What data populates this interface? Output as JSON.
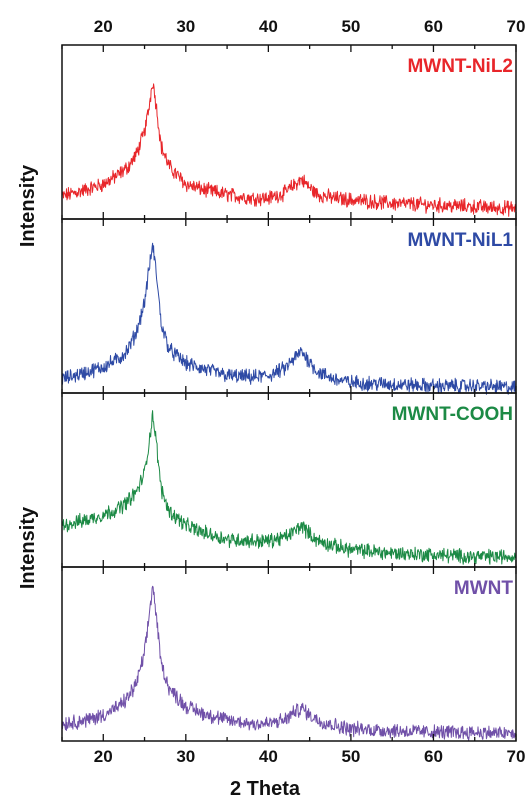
{
  "chart_data": {
    "type": "line",
    "xlabel": "2 Theta",
    "ylabel": "Intensity",
    "xlim": [
      15,
      70
    ],
    "x_ticks": [
      "20",
      "30",
      "40",
      "50",
      "60",
      "70"
    ],
    "x_tick_values": [
      20,
      30,
      40,
      50,
      60,
      70
    ],
    "minor_x_step": 5,
    "axes_top_ticks": true,
    "grid": false,
    "legend": "none (labels at top-right of each panel)",
    "panels": [
      {
        "name": "MWNT-NiL2",
        "color": "#e8262a",
        "ylim": [
          0,
          1
        ],
        "series": {
          "x": [
            15,
            18,
            20,
            22,
            23,
            24,
            25,
            25.5,
            26,
            26.5,
            27,
            28,
            30,
            32,
            35,
            38,
            40,
            42,
            43,
            44,
            45,
            46,
            48,
            50,
            55,
            60,
            65,
            70
          ],
          "y": [
            0.13,
            0.17,
            0.2,
            0.26,
            0.3,
            0.37,
            0.5,
            0.63,
            0.8,
            0.62,
            0.42,
            0.3,
            0.2,
            0.17,
            0.14,
            0.12,
            0.12,
            0.15,
            0.19,
            0.23,
            0.18,
            0.14,
            0.12,
            0.11,
            0.09,
            0.08,
            0.07,
            0.06
          ]
        }
      },
      {
        "name": "MWNT-NiL1",
        "color": "#2e4aa5",
        "ylim": [
          0,
          1
        ],
        "series": {
          "x": [
            15,
            18,
            20,
            22,
            23,
            24,
            25,
            25.5,
            26,
            26.5,
            27,
            28,
            30,
            32,
            35,
            38,
            40,
            42,
            43,
            44,
            45,
            46,
            48,
            50,
            55,
            60,
            65,
            70
          ],
          "y": [
            0.08,
            0.12,
            0.15,
            0.2,
            0.25,
            0.35,
            0.52,
            0.7,
            0.85,
            0.66,
            0.4,
            0.25,
            0.17,
            0.14,
            0.1,
            0.09,
            0.1,
            0.14,
            0.19,
            0.24,
            0.18,
            0.12,
            0.08,
            0.06,
            0.05,
            0.04,
            0.04,
            0.03
          ]
        }
      },
      {
        "name": "MWNT-COOH",
        "color": "#1c8a45",
        "ylim": [
          0,
          1
        ],
        "series": {
          "x": [
            15,
            18,
            20,
            22,
            23,
            24,
            25,
            25.5,
            26,
            26.5,
            27,
            28,
            30,
            32,
            35,
            38,
            40,
            42,
            43,
            44,
            45,
            46,
            48,
            50,
            55,
            60,
            65,
            70
          ],
          "y": [
            0.24,
            0.27,
            0.3,
            0.34,
            0.38,
            0.43,
            0.54,
            0.7,
            0.88,
            0.68,
            0.45,
            0.32,
            0.24,
            0.2,
            0.16,
            0.15,
            0.15,
            0.17,
            0.2,
            0.24,
            0.19,
            0.15,
            0.12,
            0.1,
            0.08,
            0.07,
            0.06,
            0.06
          ]
        }
      },
      {
        "name": "MWNT",
        "color": "#7050a8",
        "ylim": [
          0,
          1
        ],
        "series": {
          "x": [
            15,
            18,
            20,
            22,
            23,
            24,
            25,
            25.5,
            26,
            26.5,
            27,
            28,
            30,
            32,
            35,
            38,
            40,
            42,
            43,
            44,
            45,
            46,
            48,
            50,
            55,
            60,
            65,
            70
          ],
          "y": [
            0.1,
            0.12,
            0.15,
            0.2,
            0.25,
            0.33,
            0.5,
            0.7,
            0.9,
            0.68,
            0.45,
            0.3,
            0.2,
            0.16,
            0.12,
            0.1,
            0.1,
            0.12,
            0.16,
            0.19,
            0.15,
            0.12,
            0.09,
            0.07,
            0.06,
            0.05,
            0.05,
            0.04
          ]
        }
      }
    ]
  }
}
